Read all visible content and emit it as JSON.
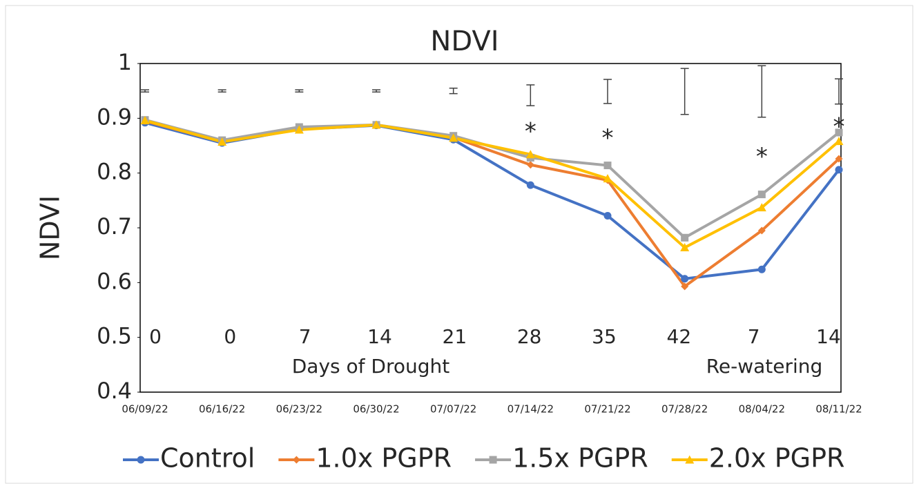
{
  "chart_data": {
    "type": "line",
    "title": "NDVI",
    "y_label": "NDVI",
    "categories": [
      "06/09/22",
      "06/16/22",
      "06/23/22",
      "06/30/22",
      "07/07/22",
      "07/14/22",
      "07/21/22",
      "07/28/22",
      "08/04/22",
      "08/11/22"
    ],
    "series": [
      {
        "name": "Control",
        "color": "#4472c4",
        "marker": "circle",
        "values": [
          0.892,
          0.855,
          0.88,
          0.887,
          0.861,
          0.778,
          0.722,
          0.607,
          0.624,
          0.806
        ]
      },
      {
        "name": "1.0x PGPR",
        "color": "#ed7d31",
        "marker": "diamond",
        "values": [
          0.895,
          0.857,
          0.88,
          0.888,
          0.865,
          0.815,
          0.787,
          0.593,
          0.695,
          0.826
        ]
      },
      {
        "name": "1.5x PGPR",
        "color": "#a5a5a5",
        "marker": "square",
        "values": [
          0.897,
          0.86,
          0.884,
          0.888,
          0.868,
          0.828,
          0.814,
          0.682,
          0.761,
          0.874
        ]
      },
      {
        "name": "2.0x PGPR",
        "color": "#ffc000",
        "marker": "triangle",
        "values": [
          0.896,
          0.857,
          0.879,
          0.888,
          0.864,
          0.834,
          0.79,
          0.664,
          0.737,
          0.858
        ]
      }
    ],
    "error_bars": {
      "center": [
        0.95,
        0.95,
        0.95,
        0.95,
        0.95,
        0.942,
        0.949,
        0.949,
        0.949,
        0.949
      ],
      "error": [
        0.002,
        0.002,
        0.002,
        0.002,
        0.005,
        0.019,
        0.022,
        0.042,
        0.047,
        0.023
      ]
    },
    "annotations": [
      {
        "text": "*",
        "category": 5,
        "y": 0.884
      },
      {
        "text": "*",
        "category": 6,
        "y": 0.872
      },
      {
        "text": "*",
        "category": 8,
        "y": 0.838
      },
      {
        "text": "*",
        "category": 9,
        "y": 0.893
      }
    ],
    "day_labels": [
      "0",
      "0",
      "7",
      "14",
      "21",
      "28",
      "35",
      "42",
      "7",
      "14"
    ],
    "period_labels": [
      "Days of Drought",
      "Re-watering"
    ],
    "ylim": [
      0.4,
      1
    ],
    "yticks": [
      0.4,
      0.5,
      0.6,
      0.7,
      0.8,
      0.9,
      1
    ],
    "grid": false
  }
}
